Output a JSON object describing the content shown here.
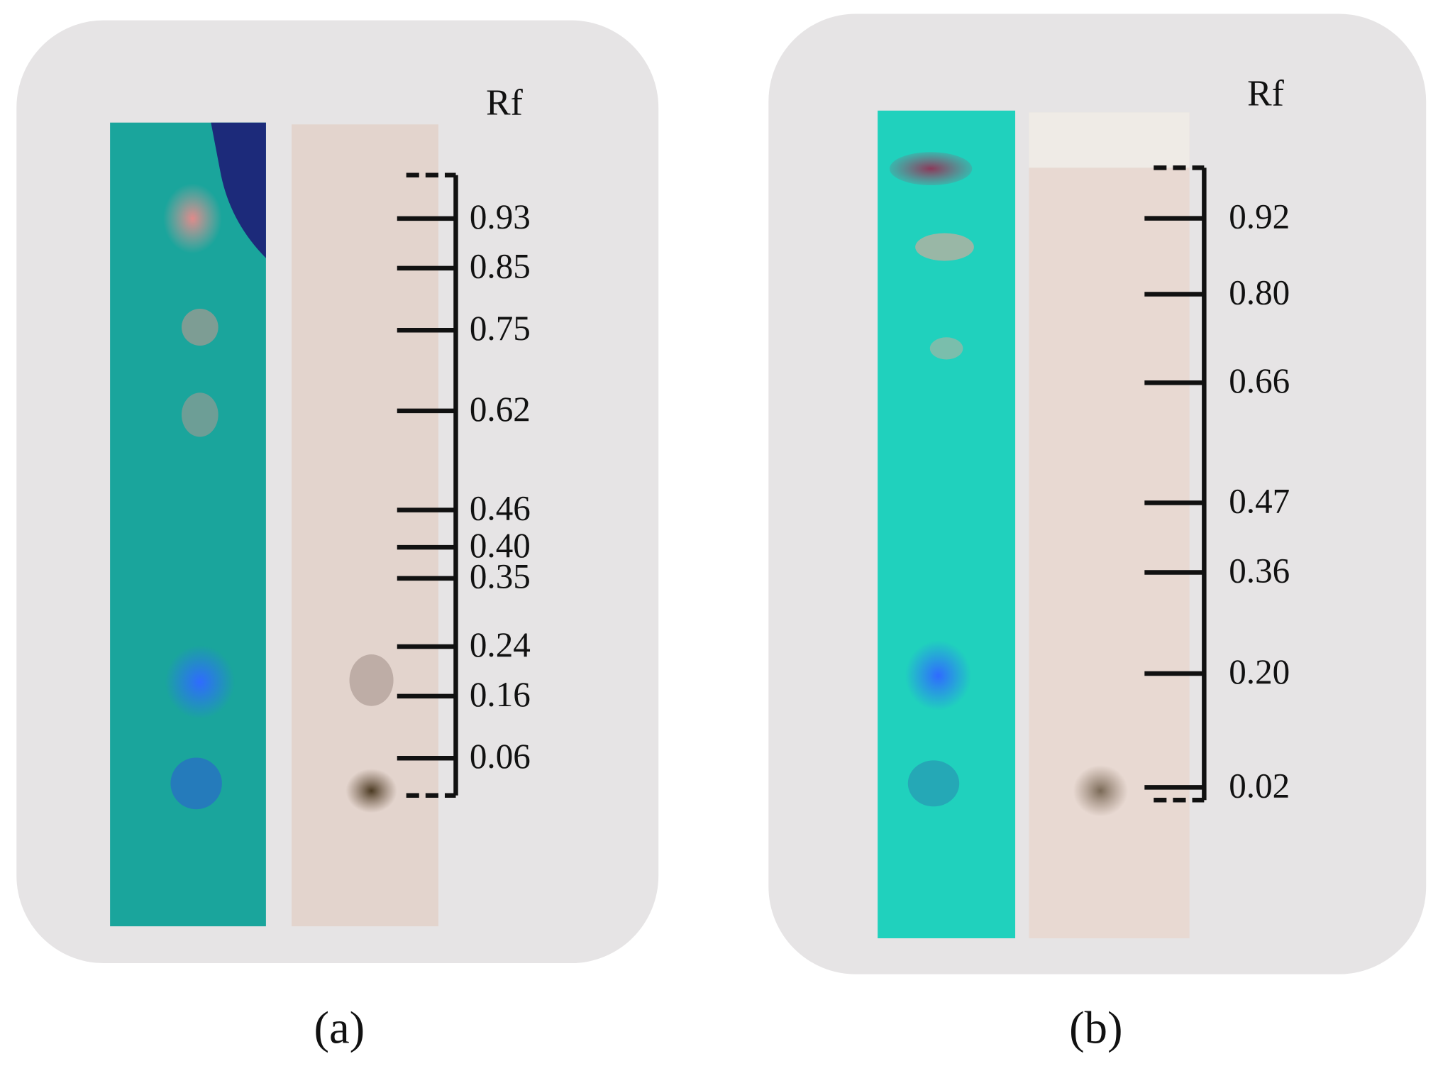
{
  "panels": [
    {
      "caption": "(a)",
      "scale_label": "Rf",
      "rf_ticks": [
        0.93,
        0.85,
        0.75,
        0.62,
        0.46,
        {
          "value": 0.4,
          "label": "0.40"
        },
        0.35,
        0.24,
        0.16,
        0.06
      ]
    },
    {
      "caption": "(b)",
      "scale_label": "Rf",
      "rf_ticks": [
        0.92,
        {
          "value": 0.8,
          "label": "0.80"
        },
        0.66,
        0.47,
        0.36,
        {
          "value": 0.2,
          "label": "0.20"
        },
        0.02
      ]
    }
  ]
}
